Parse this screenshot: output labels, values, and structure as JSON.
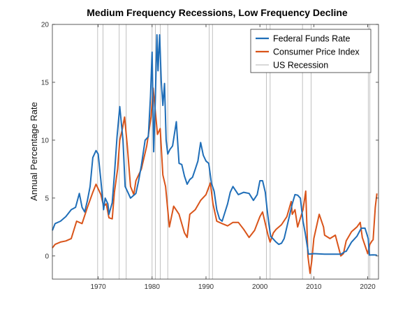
{
  "chart_data": {
    "type": "line",
    "title": "Medium Frequency Recessions, Low Frequency Decline",
    "xlabel": "",
    "ylabel": "Annual Percentage Rate",
    "xlim": [
      1961.5,
      2022
    ],
    "ylim": [
      -2,
      20
    ],
    "x_ticks": [
      1970,
      1980,
      1990,
      2000,
      2010,
      2020
    ],
    "y_ticks": [
      0,
      5,
      10,
      15,
      20
    ],
    "grid": false,
    "legend_position": "top-right",
    "recession_lines": [
      1969.9,
      1970.9,
      1973.9,
      1975.2,
      1980.0,
      1980.6,
      1981.5,
      1982.9,
      1990.6,
      1991.2,
      2001.2,
      2001.9,
      2007.9,
      2009.5,
      2020.1,
      2020.4
    ],
    "series": [
      {
        "name": "Federal Funds Rate",
        "color": "#1f6eb8",
        "x": [
          1961.5,
          1962,
          1963,
          1964,
          1965,
          1965.8,
          1966.5,
          1967,
          1967.5,
          1968,
          1968.5,
          1969,
          1969.6,
          1970,
          1970.5,
          1971,
          1971.3,
          1971.8,
          1972,
          1972.6,
          1973,
          1973.5,
          1974,
          1974.6,
          1975,
          1975.5,
          1976,
          1977,
          1977.5,
          1978,
          1978.7,
          1979.3,
          1979.7,
          1980,
          1980.3,
          1980.6,
          1980.9,
          1981.1,
          1981.4,
          1981.7,
          1982,
          1982.3,
          1982.6,
          1982.9,
          1983.3,
          1983.8,
          1984.5,
          1985,
          1985.5,
          1986,
          1986.5,
          1987,
          1987.5,
          1988,
          1988.5,
          1989,
          1989.5,
          1990,
          1990.5,
          1991,
          1991.5,
          1992,
          1992.5,
          1993,
          1994,
          1994.5,
          1995,
          1996,
          1997,
          1998,
          1998.8,
          1999.5,
          2000,
          2000.5,
          2001,
          2001.3,
          2001.6,
          2001.9,
          2002,
          2003,
          2003.5,
          2004,
          2004.5,
          2005,
          2005.5,
          2006,
          2006.5,
          2007,
          2007.5,
          2008,
          2008.4,
          2008.9,
          2009,
          2010,
          2012,
          2015,
          2015.9,
          2016,
          2017,
          2018,
          2018.8,
          2019.5,
          2019.9,
          2020.1,
          2020.3,
          2021,
          2021.7
        ],
        "values": [
          2.2,
          2.8,
          3.0,
          3.4,
          4.0,
          4.2,
          5.4,
          4.2,
          3.8,
          4.8,
          6.0,
          8.5,
          9.1,
          8.8,
          6.5,
          4.0,
          5.0,
          4.5,
          3.6,
          4.6,
          7.0,
          10.3,
          12.9,
          10.0,
          6.0,
          5.5,
          5.0,
          5.4,
          6.5,
          7.8,
          10.0,
          10.3,
          13.8,
          17.6,
          9.0,
          13.5,
          19.1,
          16.0,
          19.1,
          15.1,
          13.0,
          14.9,
          10.0,
          8.8,
          9.2,
          9.5,
          11.6,
          8.0,
          7.9,
          6.9,
          6.2,
          6.6,
          6.8,
          7.5,
          8.2,
          9.8,
          8.7,
          8.2,
          8.0,
          6.3,
          5.6,
          4.0,
          3.2,
          3.0,
          4.5,
          5.5,
          6.0,
          5.3,
          5.5,
          5.4,
          4.8,
          5.3,
          6.5,
          6.5,
          5.5,
          4.2,
          3.0,
          2.0,
          1.7,
          1.2,
          1.0,
          1.1,
          1.5,
          2.5,
          3.5,
          4.5,
          5.3,
          5.25,
          5.0,
          3.0,
          2.0,
          0.5,
          0.15,
          0.2,
          0.15,
          0.15,
          0.4,
          0.4,
          1.2,
          1.7,
          2.4,
          2.4,
          1.8,
          1.5,
          0.08,
          0.1,
          0.08
        ]
      },
      {
        "name": "Consumer Price Index",
        "color": "#d9541a",
        "x": [
          1961.5,
          1962,
          1963,
          1964,
          1965,
          1966,
          1967,
          1968,
          1969,
          1969.6,
          1970,
          1970.5,
          1971,
          1971.5,
          1972,
          1972.6,
          1973,
          1973.6,
          1974,
          1974.5,
          1974.9,
          1975.4,
          1976,
          1976.6,
          1977,
          1978,
          1979,
          1979.8,
          1980.2,
          1980.6,
          1981,
          1981.5,
          1982,
          1982.5,
          1982.9,
          1983.2,
          1984,
          1985,
          1986,
          1986.5,
          1987,
          1988,
          1989,
          1990,
          1990.8,
          1991.3,
          1992,
          1993,
          1994,
          1995,
          1996,
          1997,
          1998,
          1999,
          2000,
          2000.5,
          2001,
          2001.5,
          2001.9,
          2002.5,
          2003,
          2004,
          2005,
          2005.8,
          2006,
          2006.5,
          2007,
          2008,
          2008.5,
          2008.9,
          2009.3,
          2009.6,
          2010,
          2011,
          2011.8,
          2012,
          2013,
          2014,
          2015,
          2015.5,
          2016,
          2017,
          2018,
          2018.6,
          2019,
          2020,
          2020.4,
          2020.8,
          2021,
          2021.4,
          2021.7
        ],
        "values": [
          0.7,
          1.0,
          1.2,
          1.3,
          1.5,
          3.0,
          2.8,
          4.2,
          5.5,
          6.2,
          5.8,
          5.3,
          4.3,
          4.5,
          3.3,
          3.2,
          5.5,
          7.5,
          10.0,
          11.0,
          12.0,
          9.5,
          6.0,
          5.3,
          6.5,
          7.5,
          9.5,
          12.0,
          14.5,
          12.5,
          10.5,
          11.0,
          7.0,
          6.0,
          4.0,
          2.5,
          4.3,
          3.6,
          2.0,
          1.6,
          3.6,
          4.0,
          4.8,
          5.3,
          6.3,
          4.5,
          3.0,
          2.8,
          2.6,
          2.9,
          2.9,
          2.3,
          1.6,
          2.2,
          3.4,
          3.8,
          2.8,
          1.8,
          1.2,
          2.0,
          2.3,
          2.7,
          3.4,
          4.7,
          3.6,
          4.0,
          2.5,
          4.0,
          5.6,
          0.0,
          -1.5,
          -0.5,
          1.5,
          3.6,
          2.5,
          1.8,
          1.5,
          1.8,
          0.0,
          0.2,
          1.3,
          2.1,
          2.5,
          2.9,
          1.6,
          0.2,
          1.0,
          1.3,
          1.4,
          4.2,
          5.4
        ]
      },
      {
        "name": "US Recession",
        "color": "#b0b0b0"
      }
    ]
  }
}
